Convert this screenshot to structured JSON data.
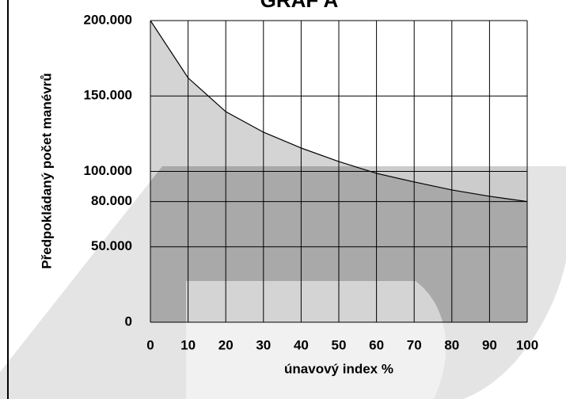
{
  "chart_data": {
    "type": "area",
    "title": "GRAF A",
    "x_label": "únavový index %",
    "y_label": "Předpokládaný počet manévrů",
    "x": [
      0,
      10,
      20,
      30,
      40,
      50,
      60,
      70,
      80,
      90,
      100
    ],
    "values": [
      200000,
      162000,
      139600,
      126000,
      115500,
      106500,
      98700,
      93000,
      87700,
      83500,
      80000
    ],
    "color": "#d4d4d4",
    "line_color": "#000000",
    "xlim": [
      0,
      100
    ],
    "xticks": [
      0,
      10,
      20,
      30,
      40,
      50,
      60,
      70,
      80,
      90,
      100
    ],
    "ylim": [
      0,
      200000
    ],
    "yticks": [
      {
        "value": 0,
        "label": "0"
      },
      {
        "value": 50000,
        "label": "50.000"
      },
      {
        "value": 80000,
        "label": "80.000"
      },
      {
        "value": 100000,
        "label": "100.000"
      },
      {
        "value": 150000,
        "label": "150.000"
      },
      {
        "value": 200000,
        "label": "200.000"
      }
    ],
    "grid": true
  }
}
